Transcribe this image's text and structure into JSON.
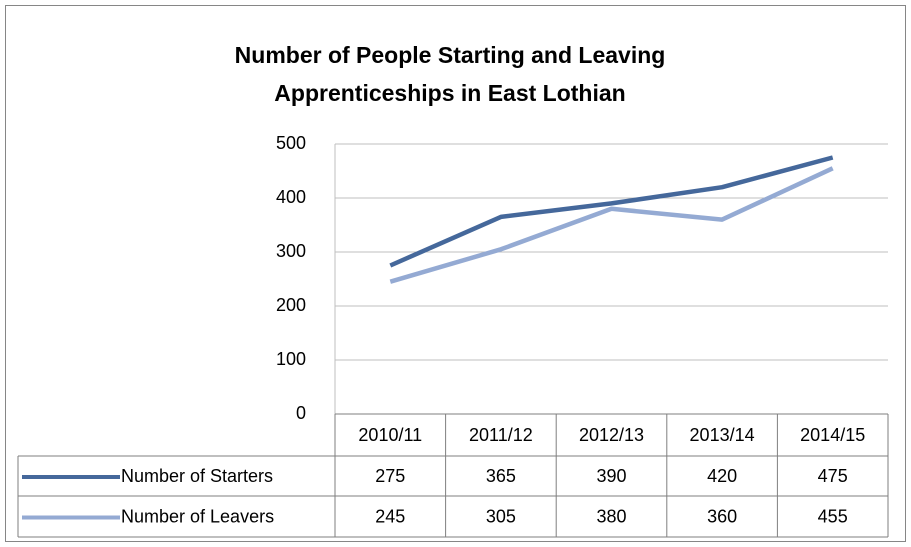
{
  "chart_data": {
    "type": "line",
    "title": [
      "Number of People Starting and Leaving",
      "Apprenticeships in East Lothian"
    ],
    "categories": [
      "2010/11",
      "2011/12",
      "2012/13",
      "2013/14",
      "2014/15"
    ],
    "series": [
      {
        "name": "Number of Starters",
        "color": "#45689b",
        "values": [
          275,
          365,
          390,
          420,
          475
        ]
      },
      {
        "name": "Number of Leavers",
        "color": "#94aad3",
        "values": [
          245,
          305,
          380,
          360,
          455
        ]
      }
    ],
    "ylim": [
      0,
      500
    ],
    "yticks": [
      0,
      100,
      200,
      300,
      400,
      500
    ],
    "grid": true,
    "data_table": true
  }
}
